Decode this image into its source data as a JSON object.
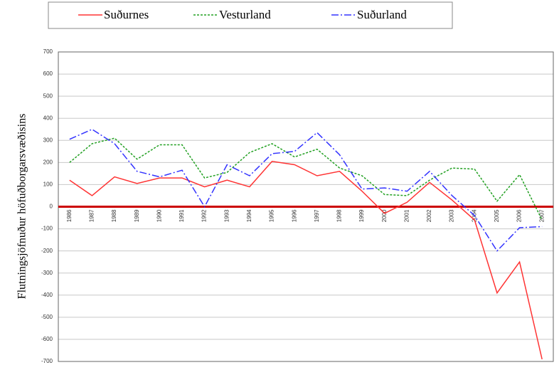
{
  "chart_data": {
    "type": "line",
    "y_label": "Flutningsjöfnuður höfuðborgarsvæðisins",
    "categories": [
      "1986",
      "1987",
      "1988",
      "1989",
      "1990",
      "1991",
      "1992",
      "1993",
      "1994",
      "1995",
      "1996",
      "1997",
      "1998",
      "1999",
      "2000",
      "2001",
      "2002",
      "2003",
      "2004",
      "2005",
      "2006",
      "2007"
    ],
    "series": [
      {
        "name": "Suðurnes",
        "color": "#ff3333",
        "dash": "",
        "values": [
          120,
          50,
          135,
          105,
          130,
          130,
          90,
          120,
          90,
          205,
          190,
          140,
          160,
          70,
          -30,
          20,
          110,
          30,
          -60,
          -390,
          -250,
          -690
        ]
      },
      {
        "name": "Vesturland",
        "color": "#22a022",
        "dash": "3,2",
        "values": [
          200,
          285,
          310,
          215,
          280,
          280,
          130,
          155,
          245,
          285,
          225,
          260,
          175,
          140,
          55,
          50,
          120,
          175,
          170,
          25,
          145,
          -60
        ]
      },
      {
        "name": "Suðurland",
        "color": "#3333ff",
        "dash": "10,3,2,3",
        "values": [
          305,
          350,
          285,
          160,
          135,
          165,
          0,
          190,
          140,
          240,
          250,
          335,
          235,
          80,
          85,
          70,
          160,
          50,
          -40,
          -200,
          -95,
          -90
        ]
      }
    ],
    "ylim": [
      -700,
      700
    ],
    "yticks": [
      -700,
      -600,
      -500,
      -400,
      -300,
      -200,
      -100,
      0,
      100,
      200,
      300,
      400,
      500,
      600,
      700
    ],
    "grid": true,
    "legend": "top"
  }
}
